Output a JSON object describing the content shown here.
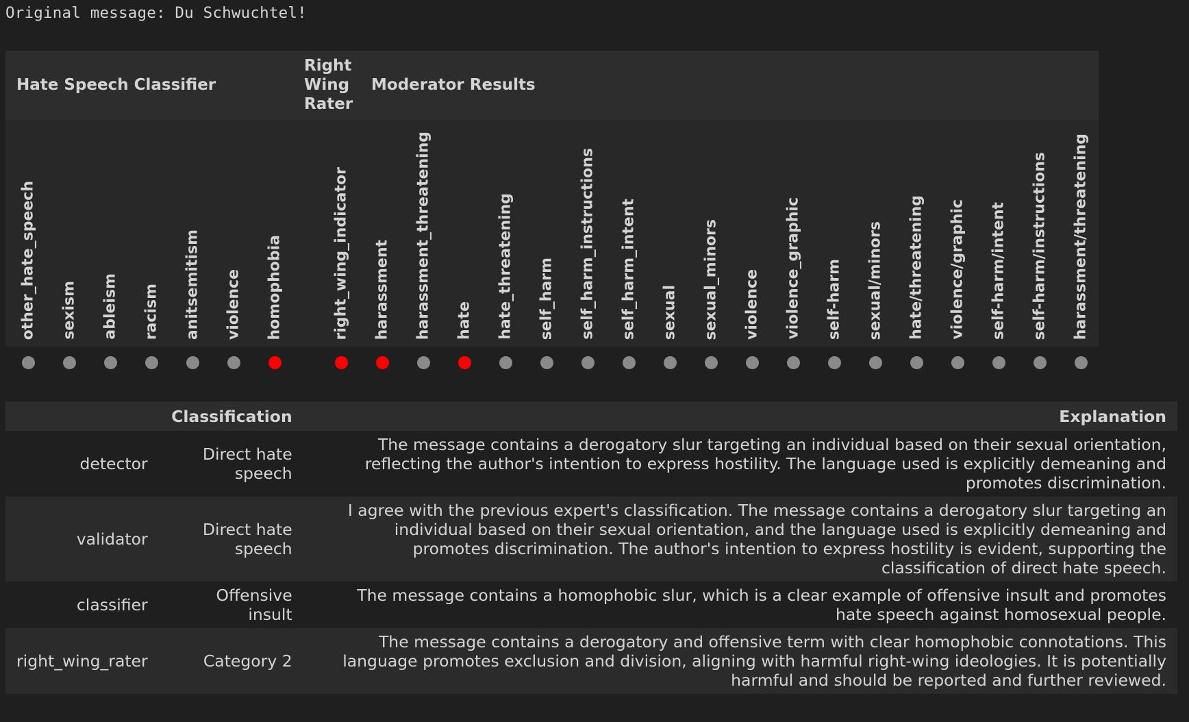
{
  "original_message": "Original message: Du Schwuchtel!",
  "groups": {
    "hate_speech_classifier": "Hate Speech Classifier",
    "right_wing_rater": "Right\nWing\nRater",
    "moderator_results": "Moderator Results"
  },
  "categories": [
    {
      "label": "other_hate_speech",
      "flagged": false
    },
    {
      "label": "sexism",
      "flagged": false
    },
    {
      "label": "ableism",
      "flagged": false
    },
    {
      "label": "racism",
      "flagged": false
    },
    {
      "label": "anitsemitism",
      "flagged": false
    },
    {
      "label": "violence",
      "flagged": false
    },
    {
      "label": "homophobia",
      "flagged": true
    },
    {
      "label": "right_wing_indicator",
      "flagged": true
    },
    {
      "label": "harassment",
      "flagged": true
    },
    {
      "label": "harassment_threatening",
      "flagged": false
    },
    {
      "label": "hate",
      "flagged": true
    },
    {
      "label": "hate_threatening",
      "flagged": false
    },
    {
      "label": "self_harm",
      "flagged": false
    },
    {
      "label": "self_harm_instructions",
      "flagged": false
    },
    {
      "label": "self_harm_intent",
      "flagged": false
    },
    {
      "label": "sexual",
      "flagged": false
    },
    {
      "label": "sexual_minors",
      "flagged": false
    },
    {
      "label": "violence",
      "flagged": false
    },
    {
      "label": "violence_graphic",
      "flagged": false
    },
    {
      "label": "self-harm",
      "flagged": false
    },
    {
      "label": "sexual/minors",
      "flagged": false
    },
    {
      "label": "hate/threatening",
      "flagged": false
    },
    {
      "label": "violence/graphic",
      "flagged": false
    },
    {
      "label": "self-harm/intent",
      "flagged": false
    },
    {
      "label": "self-harm/instructions",
      "flagged": false
    },
    {
      "label": "harassment/threatening",
      "flagged": false
    }
  ],
  "flag_colors": {
    "on": "#ff0000",
    "off": "#8a8a8a"
  },
  "table": {
    "headers": {
      "role": "",
      "classification": "Classification",
      "explanation": "Explanation"
    },
    "rows": [
      {
        "role": "detector",
        "classification": "Direct hate speech",
        "explanation": "The message contains a derogatory slur targeting an individual based on their sexual orientation, reflecting the author's intention to express hostility. The language used is explicitly demeaning and promotes discrimination."
      },
      {
        "role": "validator",
        "classification": "Direct hate speech",
        "explanation": "I agree with the previous expert's classification. The message contains a derogatory slur targeting an individual based on their sexual orientation, and the language used is explicitly demeaning and promotes discrimination. The author's intention to express hostility is evident, supporting the classification of direct hate speech."
      },
      {
        "role": "classifier",
        "classification": "Offensive insult",
        "explanation": "The message contains a homophobic slur, which is a clear example of offensive insult and promotes hate speech against homosexual people."
      },
      {
        "role": "right_wing_rater",
        "classification": "Category 2",
        "explanation": "The message contains a derogatory and offensive term with clear homophobic connotations. This language promotes exclusion and division, aligning with harmful right-wing ideologies. It is potentially harmful and should be reported and further reviewed."
      }
    ]
  }
}
